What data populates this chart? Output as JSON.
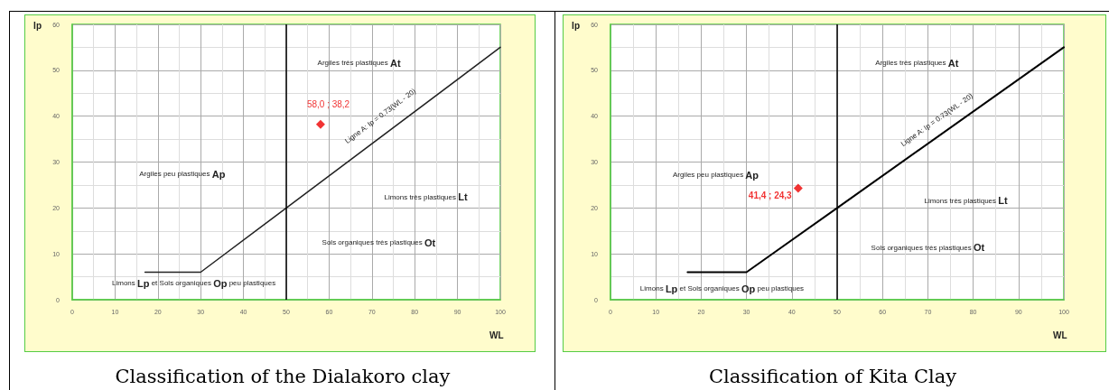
{
  "chart_data": [
    {
      "type": "scatter",
      "title": "Classification of the Dialakoro clay",
      "xlabel": "WL",
      "ylabel": "Ip",
      "xlim": [
        0,
        100
      ],
      "xticks": [
        0,
        10,
        20,
        30,
        40,
        50,
        60,
        70,
        80,
        90,
        100
      ],
      "ylim": [
        0,
        60
      ],
      "yticks": [
        0,
        10,
        20,
        30,
        40,
        50,
        60
      ],
      "grid": true,
      "series": [
        {
          "type": "line",
          "color": "#222222",
          "marker": "none",
          "x": [
            17,
            30,
            50,
            100
          ],
          "values": [
            6,
            6,
            20,
            55
          ]
        },
        {
          "type": "scatter",
          "color": "#ee0000",
          "marker": "diamond",
          "x": [
            58.0
          ],
          "values": [
            38.2
          ],
          "value_labels": [
            "58,0 ; 38,2"
          ]
        }
      ],
      "ref_lines": [
        {
          "axis": "x",
          "value": 50,
          "color": "#000000"
        }
      ],
      "annotations": [
        "Argiles très plastiques At",
        "Argiles peu plastiques Ap",
        "Limons très plastiques Lt",
        "Sols organiques très plastiques Ot",
        "Limons Lp et Sols organiques Op peu plastiques",
        "Ligne A: Ip = 0.73(WL - 20)"
      ]
    },
    {
      "type": "scatter",
      "title": "Classification of Kita Clay",
      "xlabel": "WL",
      "ylabel": "Ip",
      "xlim": [
        0,
        100
      ],
      "xticks": [
        0,
        10,
        20,
        30,
        40,
        50,
        60,
        70,
        80,
        90,
        100
      ],
      "ylim": [
        0,
        60
      ],
      "yticks": [
        0,
        10,
        20,
        30,
        40,
        50,
        60
      ],
      "grid": true,
      "series": [
        {
          "type": "line",
          "color": "#000000",
          "marker": "none",
          "x": [
            17,
            30,
            50,
            100
          ],
          "values": [
            6,
            6,
            20,
            55
          ]
        },
        {
          "type": "scatter",
          "color": "#ee0000",
          "marker": "diamond",
          "x": [
            41.4
          ],
          "values": [
            24.3
          ],
          "value_labels": [
            "41,4 ; 24,3"
          ]
        }
      ],
      "ref_lines": [
        {
          "axis": "x",
          "value": 50,
          "color": "#000000"
        }
      ],
      "annotations": [
        "Argiles très plastiques At",
        "Argiles peu plastiques Ap",
        "Limons très plastiques Lt",
        "Sols organiques très plastiques Ot",
        "Limons Lp et Sols organiques Op peu plastiques",
        "Ligne A: Ip = 0.73(WL - 20)"
      ]
    }
  ]
}
